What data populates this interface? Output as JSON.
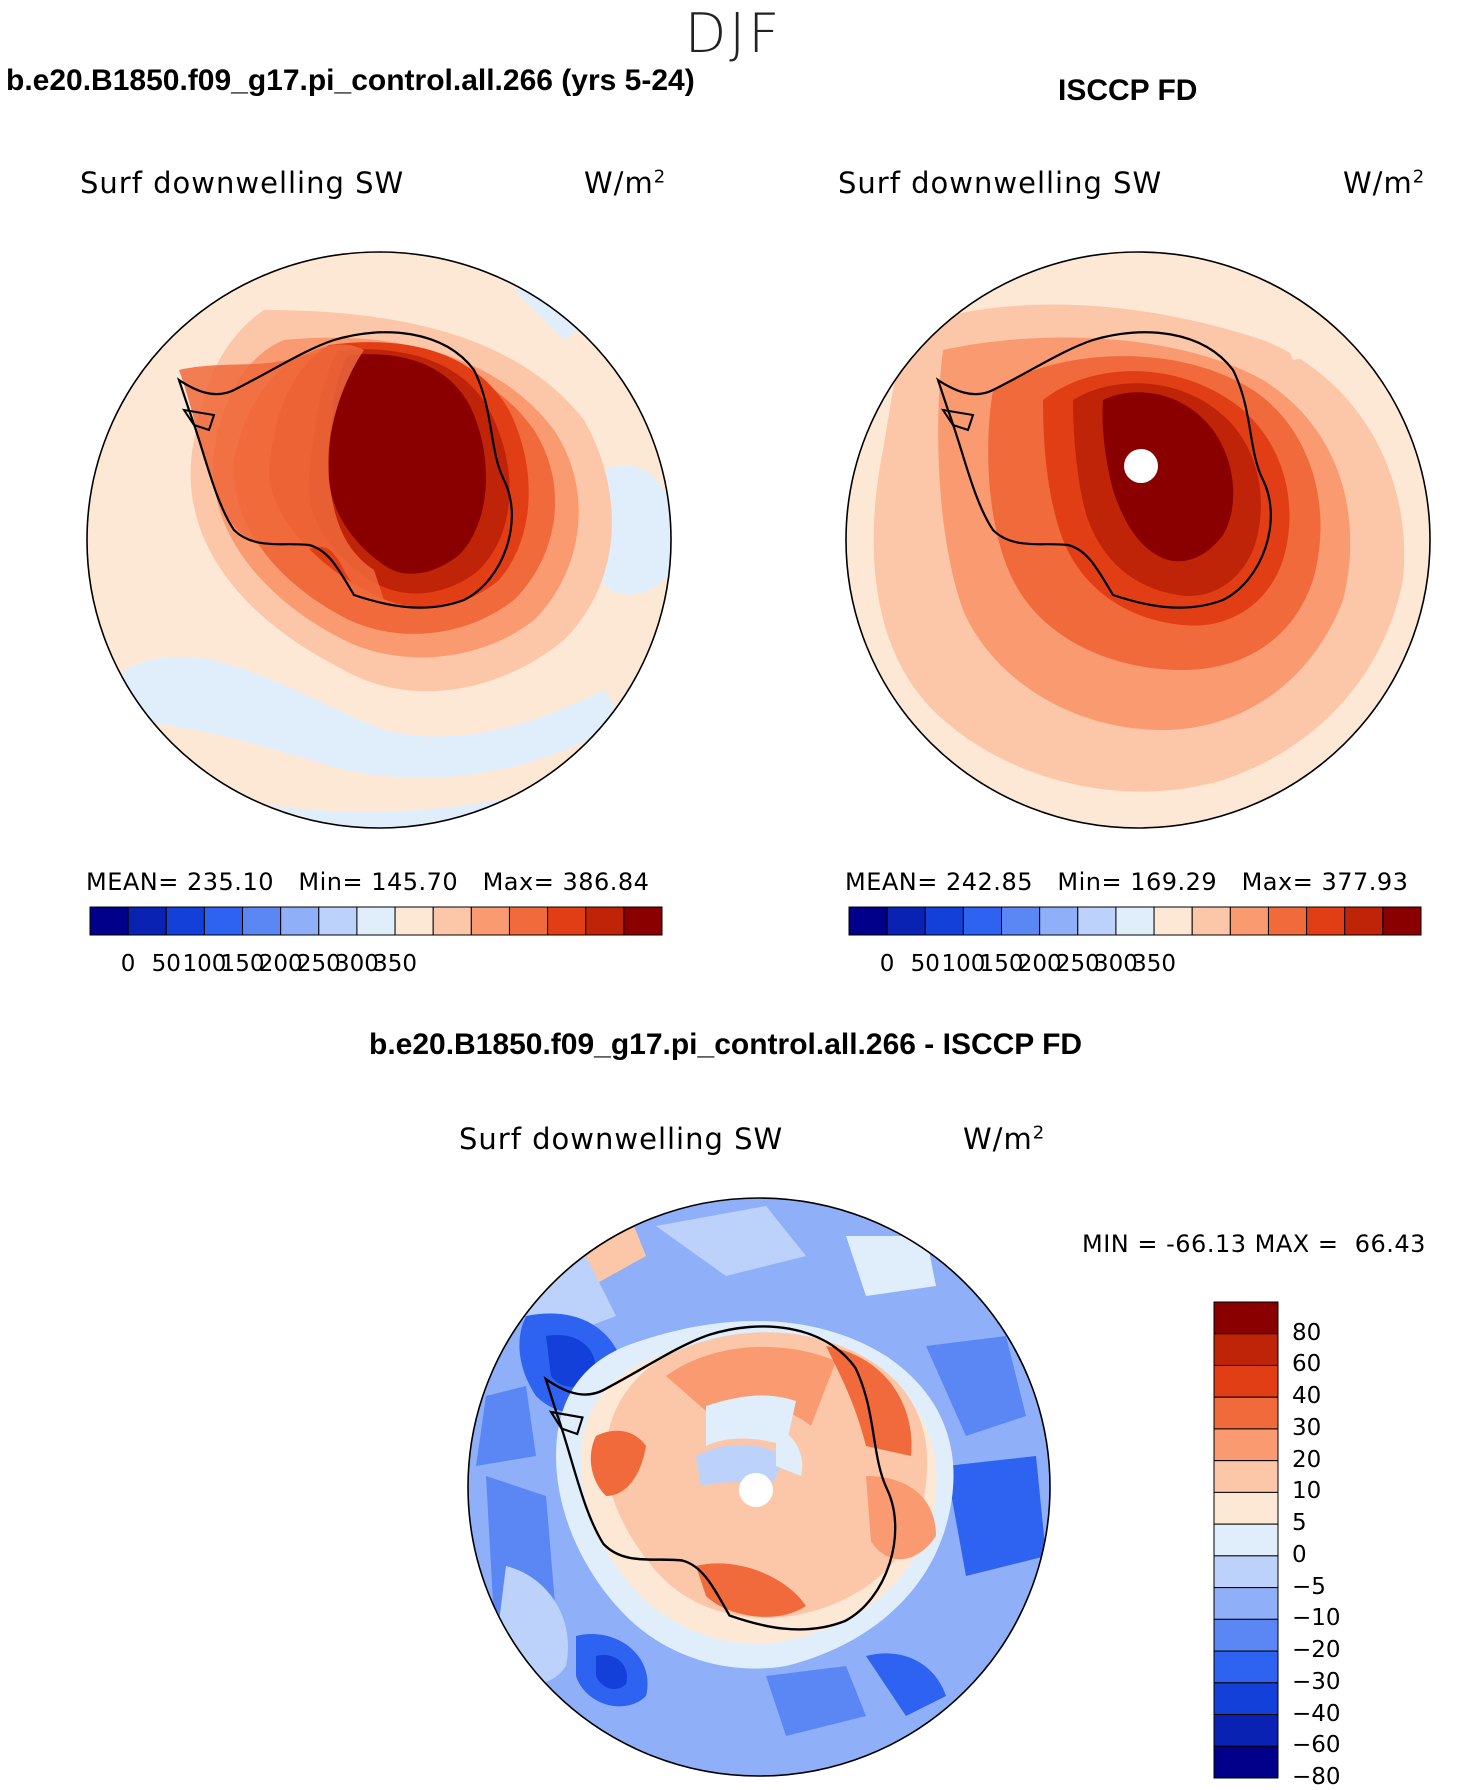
{
  "season": "DJF",
  "panels": [
    {
      "case_title": "b.e20.B1850.f09_g17.pi_control.all.266 (yrs 5-24)",
      "variable": "Surf downwelling SW",
      "units": "W/m",
      "units_exp": "2",
      "mean_label": "MEAN=",
      "mean": "235.10",
      "min_label": "Min=",
      "min": "145.70",
      "max_label": "Max=",
      "max": "386.84",
      "colorbar_ticks": [
        "0",
        "50",
        "100",
        "150",
        "200",
        "250",
        "300",
        "350"
      ]
    },
    {
      "case_title": "ISCCP FD",
      "variable": "Surf downwelling SW",
      "units": "W/m",
      "units_exp": "2",
      "mean_label": "MEAN=",
      "mean": "242.85",
      "min_label": "Min=",
      "min": "169.29",
      "max_label": "Max=",
      "max": "377.93",
      "colorbar_ticks": [
        "0",
        "50",
        "100",
        "150",
        "200",
        "250",
        "300",
        "350"
      ]
    }
  ],
  "diff_panel": {
    "case_title": "b.e20.B1850.f09_g17.pi_control.all.266 - ISCCP FD",
    "variable": "Surf downwelling SW",
    "units": "W/m",
    "units_exp": "2",
    "min_label": "MIN =",
    "min": "-66.13",
    "max_label": "MAX =",
    "max": "66.43",
    "colorbar_ticks": [
      "80",
      "60",
      "40",
      "30",
      "20",
      "10",
      "5",
      "0",
      "−5",
      "−10",
      "−20",
      "−30",
      "−40",
      "−60",
      "−80"
    ]
  },
  "colors": {
    "abs_scale": [
      "#00008a",
      "#0a22b4",
      "#1240d8",
      "#2e62f0",
      "#5b87f5",
      "#8fb0f8",
      "#bcd2fb",
      "#e0eefc",
      "#fde8d6",
      "#fcc6a8",
      "#f99a70",
      "#f06a3c",
      "#e23e16",
      "#c02408",
      "#8a0000"
    ],
    "diff_scale": [
      "#8a0000",
      "#c02408",
      "#e23e16",
      "#f06a3c",
      "#f99a70",
      "#fcc6a8",
      "#fde8d6",
      "#e0eefc",
      "#bcd2fb",
      "#8fb0f8",
      "#5b87f5",
      "#2e62f0",
      "#1240d8",
      "#0a22b4",
      "#00008a"
    ]
  }
}
